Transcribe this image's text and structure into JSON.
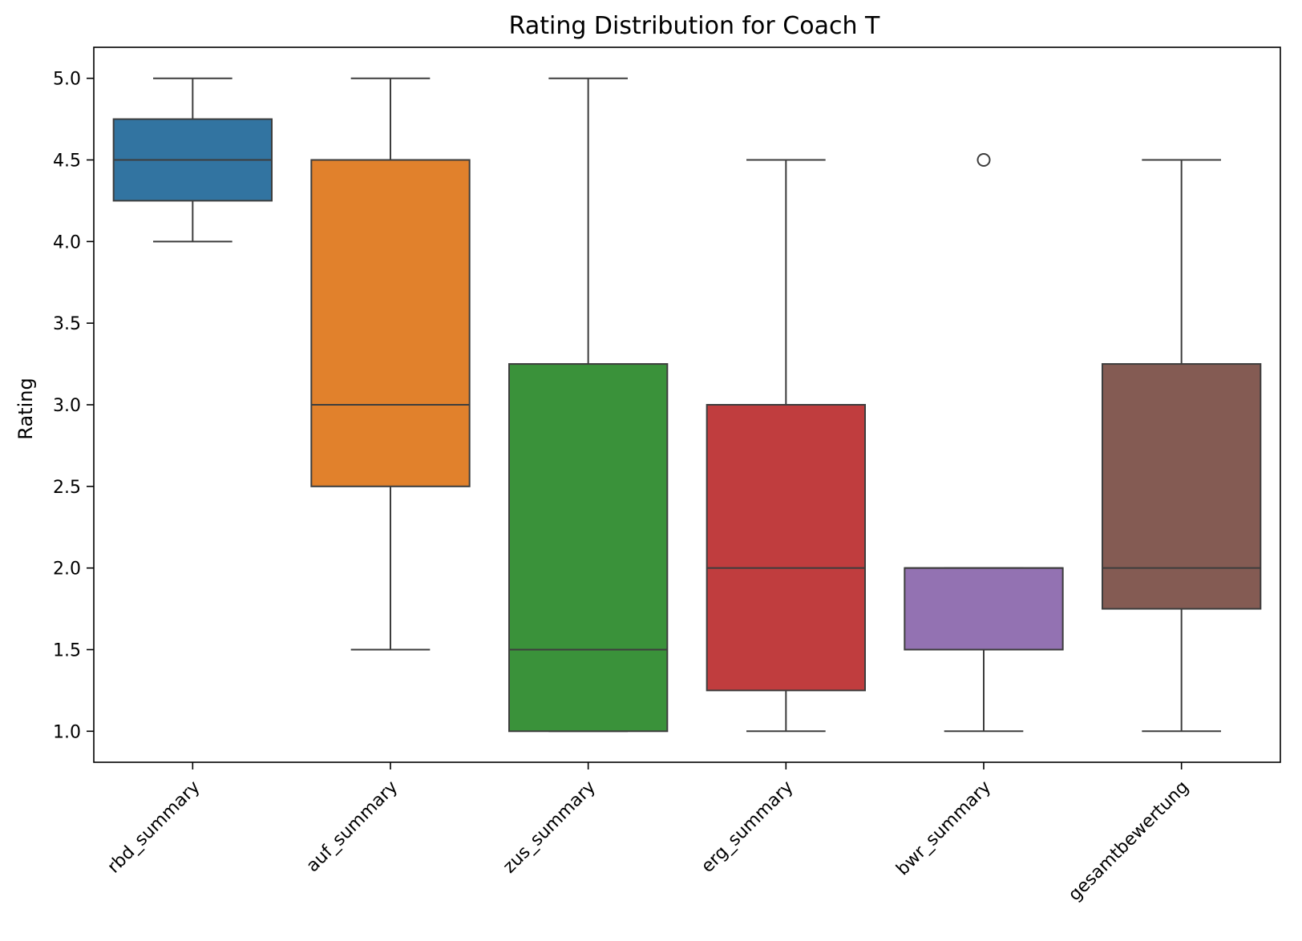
{
  "chart_data": {
    "type": "box",
    "title": "Rating Distribution for Coach T",
    "xlabel": "",
    "ylabel": "Rating",
    "ylim": [
      0.81,
      5.19
    ],
    "yticks": [
      1.0,
      1.5,
      2.0,
      2.5,
      3.0,
      3.5,
      4.0,
      4.5,
      5.0
    ],
    "ytick_labels": [
      "1.0",
      "1.5",
      "2.0",
      "2.5",
      "3.0",
      "3.5",
      "4.0",
      "4.5",
      "5.0"
    ],
    "grid": false,
    "categories": [
      "rbd_summary",
      "auf_summary",
      "zus_summary",
      "erg_summary",
      "bwr_summary",
      "gesamtbewertung"
    ],
    "boxes": [
      {
        "category": "rbd_summary",
        "whisker_low": 4.0,
        "q1": 4.25,
        "median": 4.5,
        "q3": 4.75,
        "whisker_high": 5.0,
        "outliers": [],
        "color": "#3274a1"
      },
      {
        "category": "auf_summary",
        "whisker_low": 1.5,
        "q1": 2.5,
        "median": 3.0,
        "q3": 4.5,
        "whisker_high": 5.0,
        "outliers": [],
        "color": "#e1812c"
      },
      {
        "category": "zus_summary",
        "whisker_low": 1.0,
        "q1": 1.0,
        "median": 1.5,
        "q3": 3.25,
        "whisker_high": 5.0,
        "outliers": [],
        "color": "#3a923a"
      },
      {
        "category": "erg_summary",
        "whisker_low": 1.0,
        "q1": 1.25,
        "median": 2.0,
        "q3": 3.0,
        "whisker_high": 4.5,
        "outliers": [],
        "color": "#c03d3e"
      },
      {
        "category": "bwr_summary",
        "whisker_low": 1.0,
        "q1": 1.5,
        "median": 2.0,
        "q3": 2.0,
        "whisker_high": 2.0,
        "outliers": [
          4.5
        ],
        "color": "#9372b2"
      },
      {
        "category": "gesamtbewertung",
        "whisker_low": 1.0,
        "q1": 1.75,
        "median": 2.0,
        "q3": 3.25,
        "whisker_high": 4.5,
        "outliers": [],
        "color": "#845b53"
      }
    ],
    "line_color": "#3d3d3d"
  }
}
